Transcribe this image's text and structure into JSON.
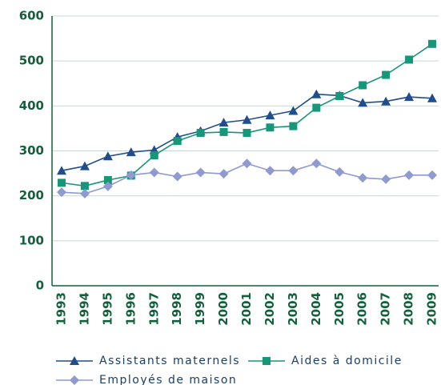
{
  "chart_data": {
    "type": "line",
    "categories": [
      "1993",
      "1994",
      "1995",
      "1996",
      "1997",
      "1998",
      "1999",
      "2000",
      "2001",
      "2002",
      "2003",
      "2004",
      "2005",
      "2006",
      "2007",
      "2008",
      "2009"
    ],
    "series": [
      {
        "name": "Assistants maternels",
        "color": "#1f4e8c",
        "marker": "triangle",
        "values": [
          256,
          266,
          288,
          297,
          302,
          331,
          344,
          363,
          369,
          379,
          389,
          426,
          423,
          407,
          410,
          420,
          417
        ]
      },
      {
        "name": "Aides à domicile",
        "color": "#17977a",
        "marker": "square",
        "values": [
          229,
          222,
          235,
          245,
          290,
          322,
          340,
          342,
          340,
          352,
          355,
          396,
          422,
          446,
          469,
          503,
          538
        ]
      },
      {
        "name": "Employés de maison",
        "color": "#8e9ad0",
        "marker": "diamond",
        "values": [
          208,
          205,
          221,
          246,
          252,
          243,
          252,
          249,
          272,
          256,
          256,
          272,
          253,
          240,
          237,
          246,
          246
        ]
      }
    ],
    "ylim": [
      0,
      600
    ],
    "yticks": [
      0,
      100,
      200,
      300,
      400,
      500,
      600
    ],
    "grid": true
  }
}
